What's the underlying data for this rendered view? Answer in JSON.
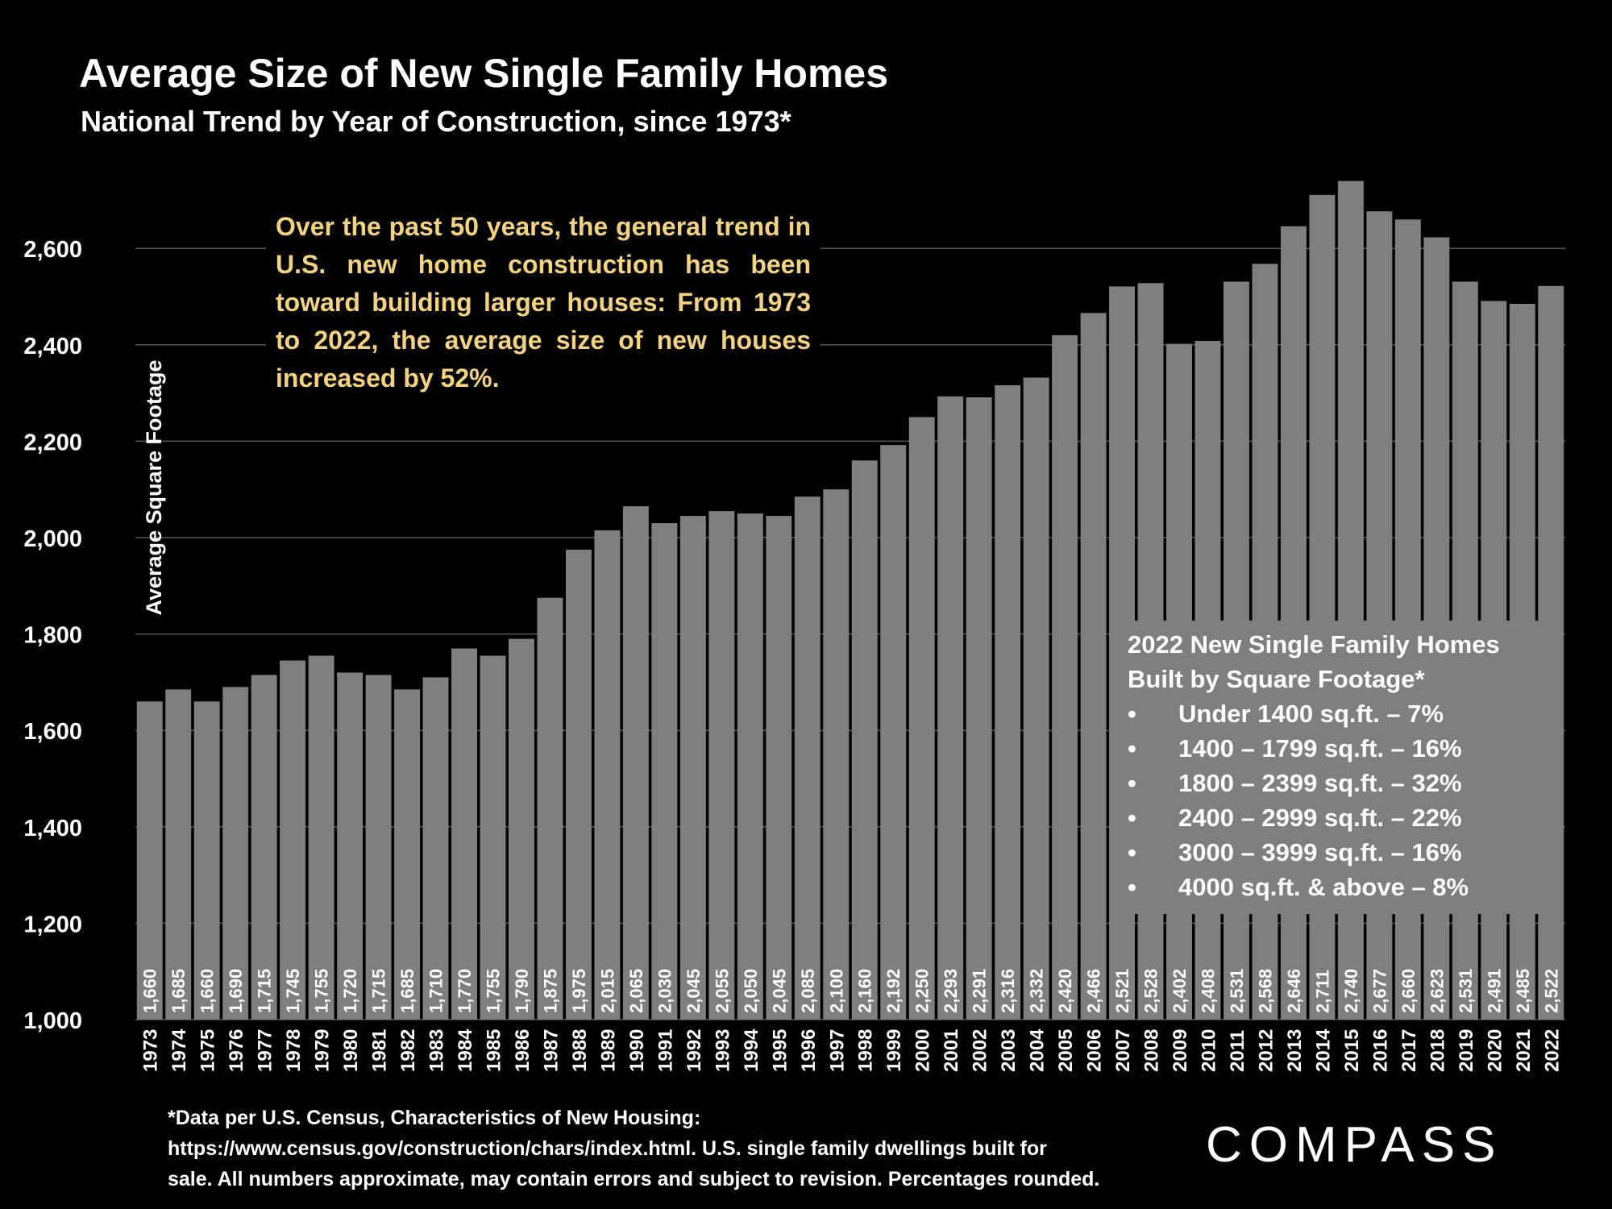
{
  "title": "Average Size of New Single Family Homes",
  "subtitle": "National Trend by Year of Construction, since 1973*",
  "annotation": "Over the past 50 years, the general trend in U.S. new home construction has been toward building larger houses: From 1973 to 2022, the average size of new houses increased by 52%.",
  "breakdown": {
    "title_line1": "2022 New Single Family Homes",
    "title_line2": "Built by Square Footage*",
    "bullet": "•",
    "items": [
      "Under 1400 sq.ft. – 7%",
      "1400 – 1799 sq.ft. – 16%",
      "1800 – 2399 sq.ft. – 32%",
      "2400 – 2999 sq.ft. – 22%",
      "3000 – 3999 sq.ft. – 16%",
      "4000 sq.ft. & above – 8%"
    ]
  },
  "footnote": {
    "line1": "*Data per U.S. Census, Characteristics of New Housing:",
    "line2": "https://www.census.gov/construction/chars/index.html. U.S. single family dwellings built for",
    "line3": "sale. All numbers approximate, may contain errors and subject to revision. Percentages rounded."
  },
  "logo": "COMPASS",
  "colors": {
    "background": "#000000",
    "bar": "#7f7f7f",
    "annotation_text": "#f5d37b",
    "gridline": "#595959",
    "text": "#ffffff"
  },
  "chart_data": {
    "type": "bar",
    "title": "Average Size of New Single Family Homes",
    "xlabel": "",
    "ylabel": "Average Square Footage",
    "ylim": [
      1000,
      2800
    ],
    "yticks": [
      1000,
      1200,
      1400,
      1600,
      1800,
      2000,
      2200,
      2400,
      2600
    ],
    "ytick_labels": [
      "1,000",
      "1,200",
      "1,400",
      "1,600",
      "1,800",
      "2,000",
      "2,200",
      "2,400",
      "2,600"
    ],
    "grid": true,
    "categories": [
      "1973",
      "1974",
      "1975",
      "1976",
      "1977",
      "1978",
      "1979",
      "1980",
      "1981",
      "1982",
      "1983",
      "1984",
      "1985",
      "1986",
      "1987",
      "1988",
      "1989",
      "1990",
      "1991",
      "1992",
      "1993",
      "1994",
      "1995",
      "1996",
      "1997",
      "1998",
      "1999",
      "2000",
      "2001",
      "2002",
      "2003",
      "2004",
      "2005",
      "2006",
      "2007",
      "2008",
      "2009",
      "2010",
      "2011",
      "2012",
      "2013",
      "2014",
      "2015",
      "2016",
      "2017",
      "2018",
      "2019",
      "2020",
      "2021",
      "2022"
    ],
    "values": [
      1660,
      1685,
      1660,
      1690,
      1715,
      1745,
      1755,
      1720,
      1715,
      1685,
      1710,
      1770,
      1755,
      1790,
      1875,
      1975,
      2015,
      2065,
      2030,
      2045,
      2055,
      2050,
      2045,
      2085,
      2100,
      2160,
      2192,
      2250,
      2293,
      2291,
      2316,
      2332,
      2420,
      2466,
      2521,
      2528,
      2402,
      2408,
      2531,
      2568,
      2646,
      2711,
      2740,
      2677,
      2660,
      2623,
      2531,
      2491,
      2485,
      2522
    ],
    "value_labels": [
      "1,660",
      "1,685",
      "1,660",
      "1,690",
      "1,715",
      "1,745",
      "1,755",
      "1,720",
      "1,715",
      "1,685",
      "1,710",
      "1,770",
      "1,755",
      "1,790",
      "1,875",
      "1,975",
      "2,015",
      "2,065",
      "2,030",
      "2,045",
      "2,055",
      "2,050",
      "2,045",
      "2,085",
      "2,100",
      "2,160",
      "2,192",
      "2,250",
      "2,293",
      "2,291",
      "2,316",
      "2,332",
      "2,420",
      "2,466",
      "2,521",
      "2,528",
      "2,402",
      "2,408",
      "2,531",
      "2,568",
      "2,646",
      "2,711",
      "2,740",
      "2,677",
      "2,660",
      "2,623",
      "2,531",
      "2,491",
      "2,485",
      "2,522"
    ]
  }
}
